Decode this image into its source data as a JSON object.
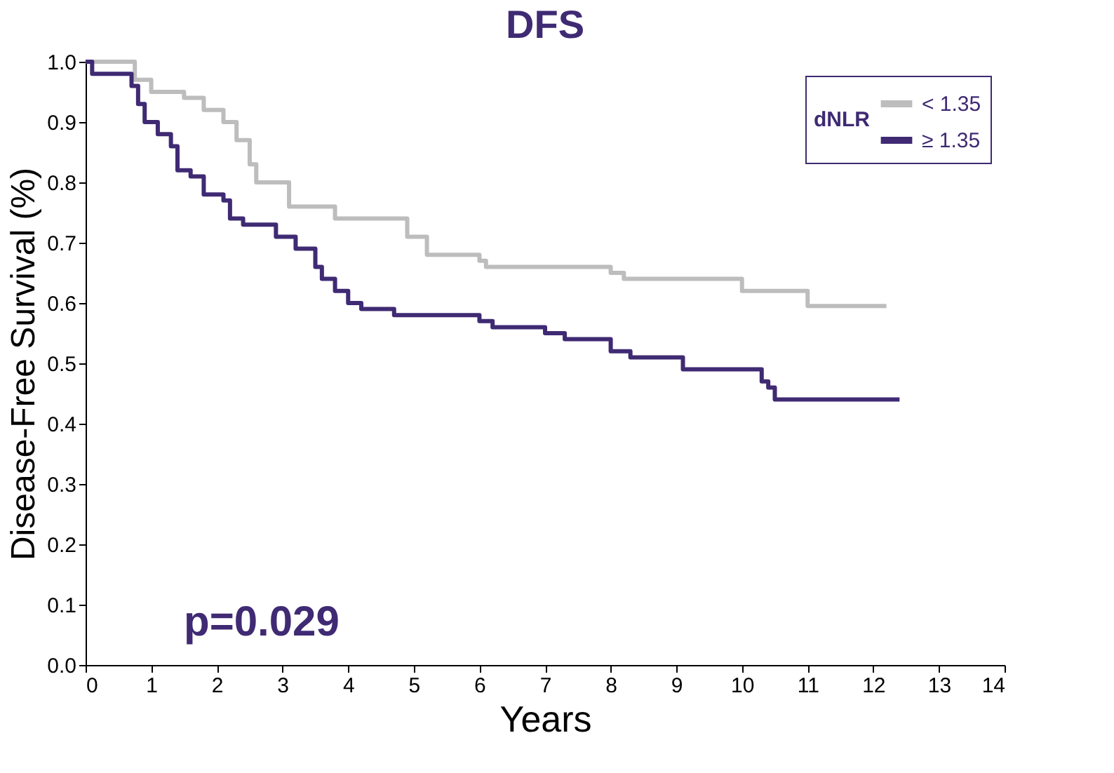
{
  "chart_data": {
    "type": "step",
    "title": "DFS",
    "xlabel": "Years",
    "ylabel": "Disease-Free Survival (%)",
    "legend_title": "dNLR",
    "legend": "top right",
    "grid": false,
    "marker": "none",
    "line_style": "solid",
    "xlim": [
      0,
      14
    ],
    "xticks": [
      0,
      1,
      2,
      3,
      4,
      5,
      6,
      7,
      8,
      9,
      10,
      11,
      12,
      13,
      14
    ],
    "ylim": [
      0,
      1
    ],
    "yticks": [
      {
        "value": 0,
        "label": "0.0"
      },
      {
        "value": 0.1,
        "label": "0.1"
      },
      {
        "value": 0.2,
        "label": "0.2"
      },
      {
        "value": 0.3,
        "label": "0.3"
      },
      {
        "value": 0.4,
        "label": "0.4"
      },
      {
        "value": 0.5,
        "label": "0.5"
      },
      {
        "value": 0.6,
        "label": "0.6"
      },
      {
        "value": 0.7,
        "label": "0.7"
      },
      {
        "value": 0.8,
        "label": "0.8"
      },
      {
        "value": 0.9,
        "label": "0.9"
      },
      {
        "value": 1,
        "label": "1.0"
      }
    ],
    "annotations": [
      "p=0.029"
    ],
    "series": [
      {
        "name": "< 1.35",
        "color": "#bdbdbd",
        "x": [
          0,
          0.75,
          1.0,
          1.5,
          1.8,
          2.1,
          2.3,
          2.5,
          2.6,
          3.1,
          3.8,
          4.9,
          5.2,
          6.0,
          6.1,
          8.0,
          8.2,
          10.0,
          11.0,
          12.2
        ],
        "values": [
          1.0,
          0.97,
          0.95,
          0.94,
          0.92,
          0.9,
          0.87,
          0.83,
          0.8,
          0.76,
          0.74,
          0.71,
          0.68,
          0.67,
          0.66,
          0.65,
          0.64,
          0.62,
          0.595,
          0.595
        ]
      },
      {
        "name": "≥ 1.35",
        "color": "#3f2a73",
        "x": [
          0,
          0.1,
          0.7,
          0.8,
          0.9,
          1.1,
          1.3,
          1.4,
          1.6,
          1.8,
          2.1,
          2.2,
          2.4,
          2.9,
          3.2,
          3.5,
          3.6,
          3.8,
          4.0,
          4.2,
          4.7,
          6.0,
          6.2,
          7.0,
          7.3,
          8.0,
          8.3,
          9.1,
          10.3,
          10.4,
          10.5,
          12.4
        ],
        "values": [
          1.0,
          0.98,
          0.96,
          0.93,
          0.9,
          0.88,
          0.86,
          0.82,
          0.81,
          0.78,
          0.77,
          0.74,
          0.73,
          0.71,
          0.69,
          0.66,
          0.64,
          0.62,
          0.6,
          0.59,
          0.58,
          0.57,
          0.56,
          0.55,
          0.54,
          0.52,
          0.51,
          0.49,
          0.47,
          0.46,
          0.44,
          0.44
        ]
      }
    ]
  }
}
